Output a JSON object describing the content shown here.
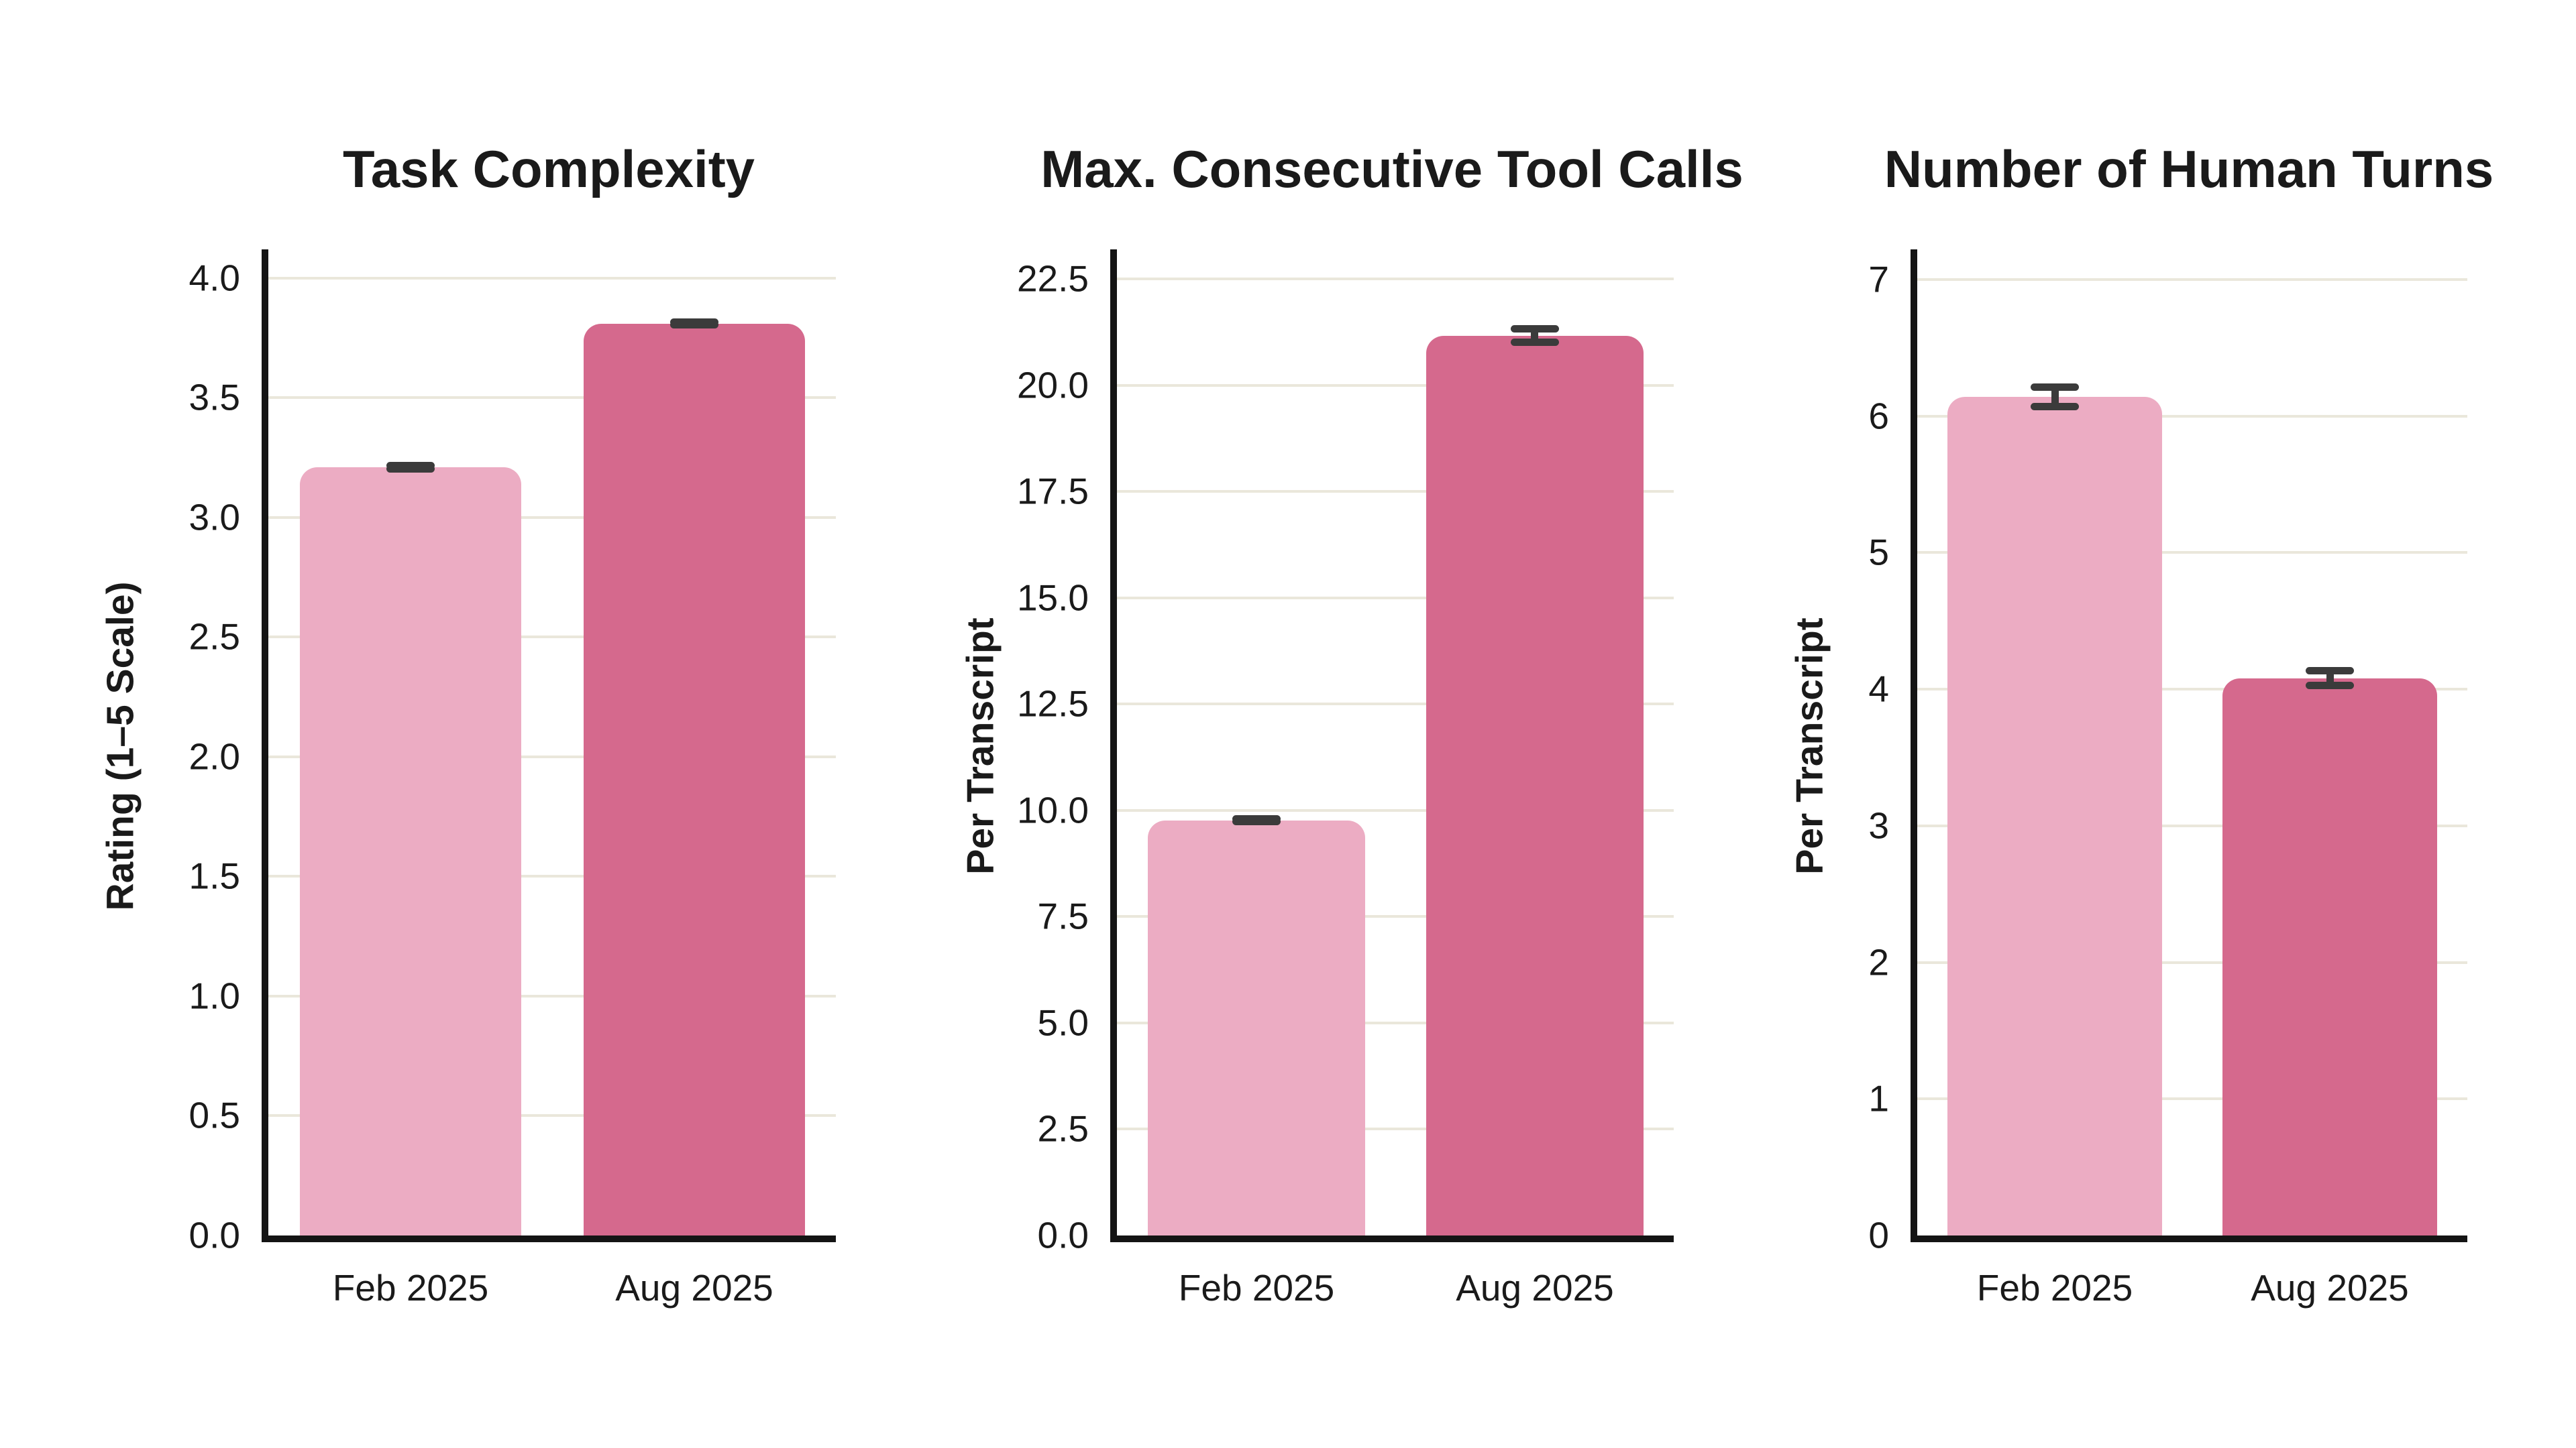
{
  "figure": {
    "background": "#ffffff",
    "text_color": "#1a1a1a",
    "gridline_color": "#eae7db",
    "axis_color": "#141414",
    "error_bar_color": "#3b3b3b"
  },
  "categories": [
    "Feb 2025",
    "Aug 2025"
  ],
  "bar_colors": [
    "#ecacc3",
    "#d5698d"
  ],
  "chart_data": [
    {
      "type": "bar",
      "title": "Task Complexity",
      "xlabel": "",
      "ylabel": "Rating (1–5 Scale)",
      "categories": [
        "Feb 2025",
        "Aug 2025"
      ],
      "values": [
        3.21,
        3.81
      ],
      "errors": [
        0.006,
        0.005
      ],
      "bar_colors": [
        "#ecacc3",
        "#d5698d"
      ],
      "yticks": [
        "0.0",
        "0.5",
        "1.0",
        "1.5",
        "2.0",
        "2.5",
        "3.0",
        "3.5",
        "4.0"
      ],
      "ytick_values": [
        0,
        0.5,
        1.0,
        1.5,
        2.0,
        2.5,
        3.0,
        3.5,
        4.0
      ],
      "ylim": [
        0,
        4.12
      ],
      "grid": "horizontal",
      "legend": "none"
    },
    {
      "type": "bar",
      "title": "Max. Consecutive Tool Calls",
      "xlabel": "",
      "ylabel": "Per Transcript",
      "categories": [
        "Feb 2025",
        "Aug 2025"
      ],
      "values": [
        9.77,
        21.17
      ],
      "errors": [
        0.03,
        0.16
      ],
      "bar_colors": [
        "#ecacc3",
        "#d5698d"
      ],
      "yticks": [
        "0.0",
        "2.5",
        "5.0",
        "7.5",
        "10.0",
        "12.5",
        "15.0",
        "17.5",
        "20.0",
        "22.5"
      ],
      "ytick_values": [
        0,
        2.5,
        5.0,
        7.5,
        10.0,
        12.5,
        15.0,
        17.5,
        20.0,
        22.5
      ],
      "ylim": [
        0,
        23.2
      ],
      "grid": "horizontal",
      "legend": "none"
    },
    {
      "type": "bar",
      "title": "Number of Human Turns",
      "xlabel": "",
      "ylabel": "Per Transcript",
      "categories": [
        "Feb 2025",
        "Aug 2025"
      ],
      "values": [
        6.14,
        4.08
      ],
      "errors": [
        0.07,
        0.055
      ],
      "bar_colors": [
        "#ecacc3",
        "#d5698d"
      ],
      "yticks": [
        "0",
        "1",
        "2",
        "3",
        "4",
        "5",
        "6",
        "7"
      ],
      "ytick_values": [
        0,
        1,
        2,
        3,
        4,
        5,
        6,
        7
      ],
      "ylim": [
        0,
        7.22
      ],
      "grid": "horizontal",
      "legend": "none"
    }
  ]
}
